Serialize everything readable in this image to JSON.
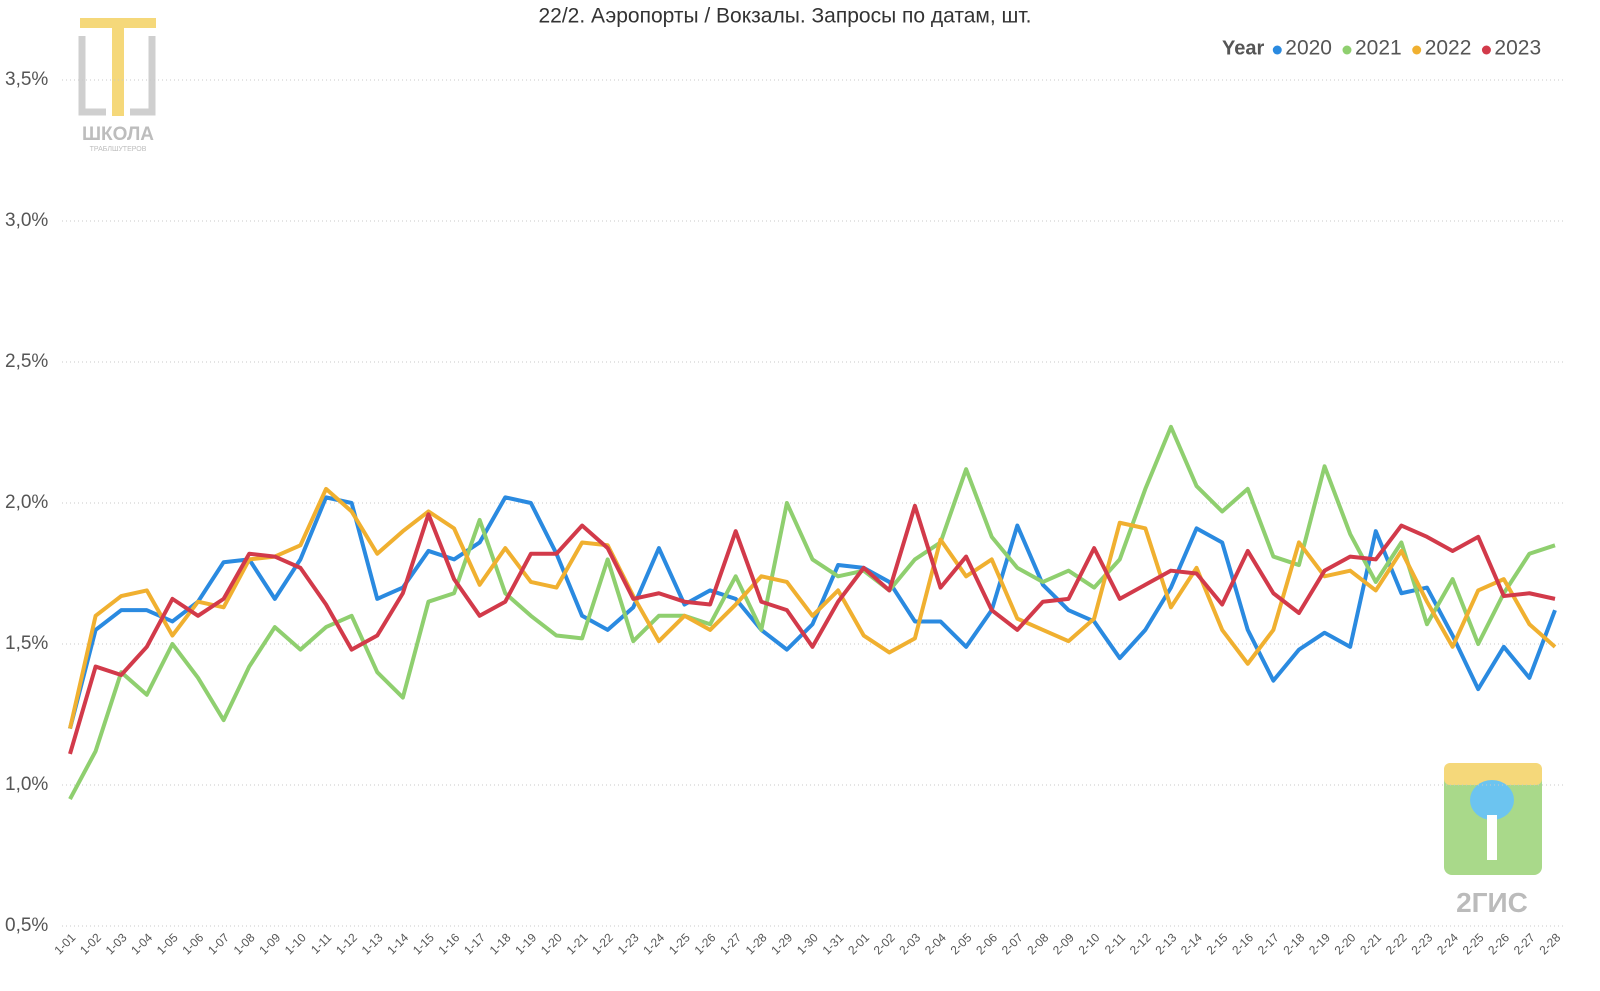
{
  "chart_data": {
    "type": "line",
    "title": "22/2. Аэропорты / Вокзалы. Запросы по датам, шт.",
    "legend_title": "Year",
    "legend_position": "top-right",
    "grid": true,
    "annotations": [
      "ШКОЛА",
      "ТРАБЛШУТЕРОВ",
      "2ГИС"
    ],
    "categories": [
      "1-01",
      "1-02",
      "1-03",
      "1-04",
      "1-05",
      "1-06",
      "1-07",
      "1-08",
      "1-09",
      "1-10",
      "1-11",
      "1-12",
      "1-13",
      "1-14",
      "1-15",
      "1-16",
      "1-17",
      "1-18",
      "1-19",
      "1-20",
      "1-21",
      "1-22",
      "1-23",
      "1-24",
      "1-25",
      "1-26",
      "1-27",
      "1-28",
      "1-29",
      "1-30",
      "1-31",
      "2-01",
      "2-02",
      "2-03",
      "2-04",
      "2-05",
      "2-06",
      "2-07",
      "2-08",
      "2-09",
      "2-10",
      "2-11",
      "2-12",
      "2-13",
      "2-14",
      "2-15",
      "2-16",
      "2-17",
      "2-18",
      "2-19",
      "2-20",
      "2-21",
      "2-22",
      "2-23",
      "2-24",
      "2-25",
      "2-26",
      "2-27",
      "2-28"
    ],
    "ylim": [
      0.5,
      3.7
    ],
    "yticks": [
      {
        "value": 0.5,
        "label": "0,5%"
      },
      {
        "value": 1.0,
        "label": "1,0%"
      },
      {
        "value": 1.5,
        "label": "1,5%"
      },
      {
        "value": 2.0,
        "label": "2,0%"
      },
      {
        "value": 2.5,
        "label": "2,5%"
      },
      {
        "value": 3.0,
        "label": "3,0%"
      },
      {
        "value": 3.5,
        "label": "3,5%"
      }
    ],
    "series": [
      {
        "name": "2020",
        "color": "#2a8ae0",
        "values": [
          1.2,
          1.55,
          1.62,
          1.62,
          1.58,
          1.65,
          1.79,
          1.8,
          1.66,
          1.8,
          2.02,
          2.0,
          1.66,
          1.7,
          1.83,
          1.8,
          1.86,
          2.02,
          2.0,
          1.82,
          1.6,
          1.55,
          1.63,
          1.84,
          1.64,
          1.69,
          1.66,
          1.55,
          1.48,
          1.57,
          1.78,
          1.77,
          1.72,
          1.58,
          1.58,
          1.49,
          1.62,
          1.92,
          1.71,
          1.62,
          1.58,
          1.45,
          1.55,
          1.7,
          1.91,
          1.86,
          1.55,
          1.37,
          1.48,
          1.54,
          1.49,
          1.9,
          1.68,
          1.7,
          1.53,
          1.34,
          1.49,
          1.38,
          1.62
        ]
      },
      {
        "name": "2021",
        "color": "#8fcf6f",
        "values": [
          0.95,
          1.12,
          1.4,
          1.32,
          1.5,
          1.38,
          1.23,
          1.42,
          1.56,
          1.48,
          1.56,
          1.6,
          1.4,
          1.31,
          1.65,
          1.68,
          1.94,
          1.68,
          1.6,
          1.53,
          1.52,
          1.8,
          1.51,
          1.6,
          1.6,
          1.57,
          1.74,
          1.55,
          2.0,
          1.8,
          1.74,
          1.76,
          1.69,
          1.8,
          1.86,
          2.12,
          1.88,
          1.77,
          1.72,
          1.76,
          1.7,
          1.8,
          2.05,
          2.27,
          2.06,
          1.97,
          2.05,
          1.81,
          1.78,
          2.13,
          1.89,
          1.72,
          1.86,
          1.57,
          1.73,
          1.5,
          1.68,
          1.82,
          1.85
        ]
      },
      {
        "name": "2022",
        "color": "#f0b030",
        "values": [
          1.2,
          1.6,
          1.67,
          1.69,
          1.53,
          1.65,
          1.63,
          1.8,
          1.81,
          1.85,
          2.05,
          1.97,
          1.82,
          1.9,
          1.97,
          1.91,
          1.71,
          1.84,
          1.72,
          1.7,
          1.86,
          1.85,
          1.67,
          1.51,
          1.6,
          1.55,
          1.64,
          1.74,
          1.72,
          1.6,
          1.69,
          1.53,
          1.47,
          1.52,
          1.87,
          1.74,
          1.8,
          1.59,
          1.55,
          1.51,
          1.59,
          1.93,
          1.91,
          1.63,
          1.77,
          1.55,
          1.43,
          1.55,
          1.86,
          1.74,
          1.76,
          1.69,
          1.83,
          1.65,
          1.49,
          1.69,
          1.73,
          1.57,
          1.49
        ]
      },
      {
        "name": "2023",
        "color": "#d23a4a",
        "values": [
          1.11,
          1.42,
          1.39,
          1.49,
          1.66,
          1.6,
          1.66,
          1.82,
          1.81,
          1.77,
          1.64,
          1.48,
          1.53,
          1.68,
          1.96,
          1.73,
          1.6,
          1.65,
          1.82,
          1.82,
          1.92,
          1.84,
          1.66,
          1.68,
          1.65,
          1.64,
          1.9,
          1.65,
          1.62,
          1.49,
          1.65,
          1.77,
          1.69,
          1.99,
          1.7,
          1.81,
          1.62,
          1.55,
          1.65,
          1.66,
          1.84,
          1.66,
          1.71,
          1.76,
          1.75,
          1.64,
          1.83,
          1.68,
          1.61,
          1.76,
          1.81,
          1.8,
          1.92,
          1.88,
          1.83,
          1.88,
          1.67,
          1.68,
          1.66
        ]
      }
    ]
  }
}
